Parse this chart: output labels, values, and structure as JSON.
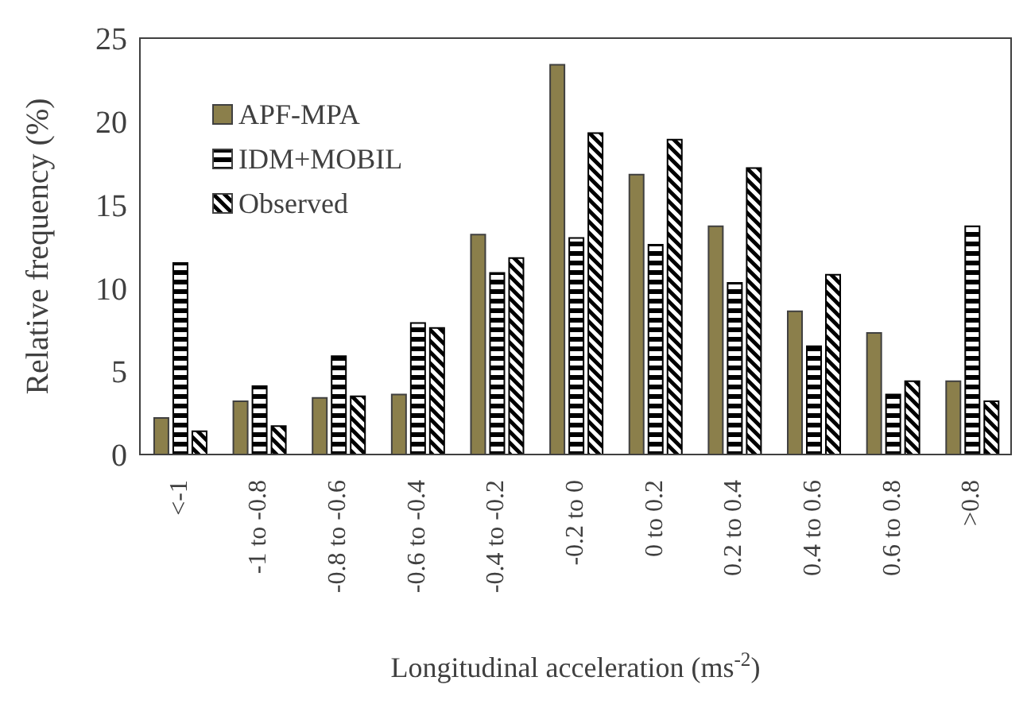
{
  "chart_data": {
    "type": "bar",
    "xlabel": "Longitudinal acceleration (ms$^{-2}$)",
    "ylabel": "Relative frequency (%)",
    "categories": [
      "<-1",
      "-1 to -0.8",
      "-0.8 to -0.6",
      "-0.6 to -0.4",
      "-0.4 to -0.2",
      "-0.2 to 0",
      "0 to 0.2",
      "0.2 to 0.4",
      "0.4 to 0.6",
      "0.6 to 0.8",
      ">0.8"
    ],
    "series": [
      {
        "name": "APF-MPA",
        "color": "#8b7f4b",
        "values": [
          2.2,
          3.2,
          3.4,
          3.6,
          13.2,
          23.4,
          16.8,
          13.7,
          8.6,
          7.3,
          4.4
        ]
      },
      {
        "name": "IDM+MOBIL",
        "color": "#000000",
        "values": [
          11.5,
          4.1,
          5.9,
          7.9,
          10.9,
          13.0,
          12.6,
          10.3,
          6.5,
          3.6,
          13.7
        ]
      },
      {
        "name": "Observed",
        "color": "#000000",
        "values": [
          1.4,
          1.7,
          3.5,
          7.6,
          11.8,
          19.3,
          18.9,
          17.2,
          10.8,
          4.4,
          3.2
        ]
      }
    ],
    "ylim": [
      0,
      25
    ],
    "yticks": [
      0,
      5,
      10,
      15,
      20,
      25
    ],
    "grid": false,
    "legend": "top left"
  }
}
